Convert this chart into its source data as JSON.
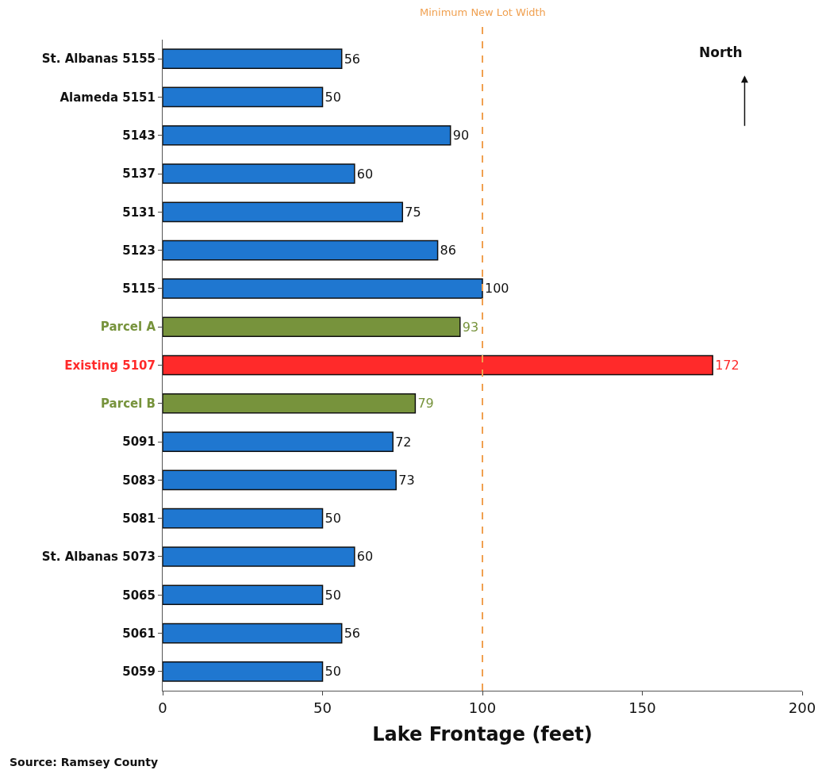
{
  "chart_data": {
    "type": "bar",
    "orientation": "horizontal",
    "categories": [
      "St. Albanas 5155",
      "Alameda 5151",
      "5143",
      "5137",
      "5131",
      "5123",
      "5115",
      "Parcel A",
      "Existing 5107",
      "Parcel B",
      "5091",
      "5083",
      "5081",
      "St. Albanas 5073",
      "5065",
      "5061",
      "5059"
    ],
    "values": [
      56,
      50,
      90,
      60,
      75,
      86,
      100,
      93,
      172,
      79,
      72,
      73,
      50,
      60,
      50,
      56,
      50
    ],
    "colors": [
      "#1f77d0",
      "#1f77d0",
      "#1f77d0",
      "#1f77d0",
      "#1f77d0",
      "#1f77d0",
      "#1f77d0",
      "#77933c",
      "#ff2a2a",
      "#77933c",
      "#1f77d0",
      "#1f77d0",
      "#1f77d0",
      "#1f77d0",
      "#1f77d0",
      "#1f77d0",
      "#1f77d0"
    ],
    "data_labels": true,
    "xlabel": "Lake Frontage (feet)",
    "xlim": [
      0,
      200
    ],
    "xticks": [
      0,
      50,
      100,
      150,
      200
    ],
    "ref_lines": [
      {
        "axis": "x",
        "value": 100,
        "label": "Minimum New Lot Width",
        "color": "#f0a050",
        "line_style": "dashed"
      }
    ],
    "annotations": [
      "North",
      "Source: Ramsey County"
    ]
  }
}
